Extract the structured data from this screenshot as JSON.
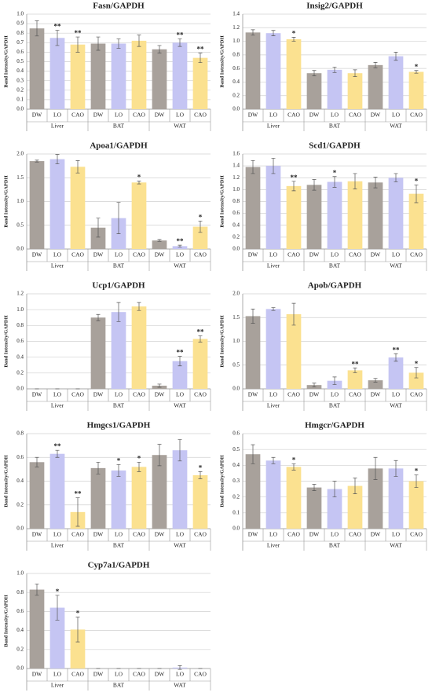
{
  "chart_data": [
    {
      "type": "bar",
      "title": "Fasn/GAPDH",
      "ylabel": "Band Intensity/GAPDH",
      "categories": [
        "DW",
        "LO",
        "CAO",
        "DW",
        "LO",
        "CAO",
        "DW",
        "LO",
        "CAO"
      ],
      "groups": [
        "Liver",
        "BAT",
        "WAT"
      ],
      "colors": [
        "#a8a19b",
        "#c5c5f3",
        "#fbe190"
      ],
      "values": [
        0.85,
        0.75,
        0.68,
        0.69,
        0.69,
        0.72,
        0.63,
        0.7,
        0.54
      ],
      "errors": [
        0.08,
        0.08,
        0.08,
        0.07,
        0.05,
        0.06,
        0.04,
        0.04,
        0.05
      ],
      "annotations": [
        null,
        "**",
        "**",
        null,
        null,
        null,
        null,
        "**",
        "**"
      ],
      "ylim": [
        0,
        1
      ],
      "yticks": [
        {
          "value": 0,
          "label": "0.0"
        },
        {
          "value": 0.1,
          "label": "0.1"
        },
        {
          "value": 0.2,
          "label": "0.2"
        },
        {
          "value": 0.3,
          "label": "0.3"
        },
        {
          "value": 0.4,
          "label": "0.4"
        },
        {
          "value": 0.5,
          "label": "0.5"
        },
        {
          "value": 0.6,
          "label": "0.6"
        },
        {
          "value": 0.7,
          "label": "0.7"
        },
        {
          "value": 0.8,
          "label": "0.8"
        },
        {
          "value": 0.9,
          "label": "0.9"
        },
        {
          "value": 1,
          "label": "1.0"
        }
      ],
      "grid": true
    },
    {
      "type": "bar",
      "title": "Insig2/GAPDH",
      "ylabel": "Band Intensity/GAPDH",
      "categories": [
        "DW",
        "LO",
        "CAO",
        "DW",
        "LO",
        "CAO",
        "DW",
        "LO",
        "CAO"
      ],
      "groups": [
        "Liver",
        "BAT",
        "WAT"
      ],
      "colors": [
        "#a8a19b",
        "#c5c5f3",
        "#fbe190"
      ],
      "values": [
        1.13,
        1.12,
        1.03,
        0.53,
        0.58,
        0.53,
        0.65,
        0.78,
        0.55
      ],
      "errors": [
        0.04,
        0.04,
        0.03,
        0.04,
        0.04,
        0.05,
        0.04,
        0.06,
        0.02
      ],
      "annotations": [
        null,
        null,
        "*",
        null,
        null,
        null,
        null,
        null,
        "*"
      ],
      "ylim": [
        0,
        1.4
      ],
      "yticks": [
        {
          "value": 0,
          "label": "0.0"
        },
        {
          "value": 0.2,
          "label": "0.2"
        },
        {
          "value": 0.4,
          "label": "0.4"
        },
        {
          "value": 0.6,
          "label": "0.6"
        },
        {
          "value": 0.8,
          "label": "0.8"
        },
        {
          "value": 1,
          "label": "1.0"
        },
        {
          "value": 1.2,
          "label": "1.2"
        },
        {
          "value": 1.4,
          "label": "1.4"
        }
      ],
      "grid": true
    },
    {
      "type": "bar",
      "title": "Apoa1/GAPDH",
      "ylabel": "Band Intensity/GAPDH",
      "categories": [
        "DW",
        "LO",
        "CAO",
        "DW",
        "LO",
        "CAO",
        "DW",
        "LO",
        "CAO"
      ],
      "groups": [
        "Liver",
        "BAT",
        "WAT"
      ],
      "colors": [
        "#a8a19b",
        "#c5c5f3",
        "#fbe190"
      ],
      "values": [
        1.85,
        1.89,
        1.73,
        0.45,
        0.65,
        1.4,
        0.18,
        0.06,
        0.47
      ],
      "errors": [
        0.02,
        0.1,
        0.13,
        0.2,
        0.33,
        0.03,
        0.02,
        0.02,
        0.12
      ],
      "annotations": [
        null,
        null,
        null,
        null,
        null,
        "*",
        null,
        "**",
        "*"
      ],
      "ylim": [
        0,
        2
      ],
      "yticks": [
        {
          "value": 0,
          "label": "0.0"
        },
        {
          "value": 0.5,
          "label": "0.5"
        },
        {
          "value": 1,
          "label": "1.0"
        },
        {
          "value": 1.5,
          "label": "1.5"
        },
        {
          "value": 2,
          "label": "2.0"
        }
      ],
      "grid": true
    },
    {
      "type": "bar",
      "title": "Scd1/GAPDH",
      "ylabel": "Band Intensity/GAPDH",
      "categories": [
        "DW",
        "LO",
        "CAO",
        "DW",
        "LO",
        "CAO",
        "DW",
        "LO",
        "CAO"
      ],
      "groups": [
        "Liver",
        "BAT",
        "WAT"
      ],
      "colors": [
        "#a8a19b",
        "#c5c5f3",
        "#fbe190"
      ],
      "values": [
        1.38,
        1.4,
        1.06,
        1.08,
        1.13,
        1.14,
        1.12,
        1.2,
        0.93
      ],
      "errors": [
        0.11,
        0.13,
        0.08,
        0.09,
        0.09,
        0.13,
        0.09,
        0.07,
        0.15
      ],
      "annotations": [
        null,
        null,
        "**",
        null,
        "*",
        null,
        null,
        null,
        "*"
      ],
      "ylim": [
        0,
        1.6
      ],
      "yticks": [
        {
          "value": 0,
          "label": "0.0"
        },
        {
          "value": 0.2,
          "label": "0.2"
        },
        {
          "value": 0.4,
          "label": "0.4"
        },
        {
          "value": 0.6,
          "label": "0.6"
        },
        {
          "value": 0.8,
          "label": "0.8"
        },
        {
          "value": 1,
          "label": "1.0"
        },
        {
          "value": 1.2,
          "label": "1.2"
        },
        {
          "value": 1.4,
          "label": "1.4"
        },
        {
          "value": 1.6,
          "label": "1.6"
        }
      ],
      "grid": true
    },
    {
      "type": "bar",
      "title": "Ucp1/GAPDH",
      "ylabel": "Band Intensity/GAPDH",
      "categories": [
        "DW",
        "LO",
        "CAO",
        "DW",
        "LO",
        "CAO",
        "DW",
        "LO",
        "CAO"
      ],
      "groups": [
        "Liver",
        "BAT",
        "WAT"
      ],
      "colors": [
        "#a8a19b",
        "#c5c5f3",
        "#fbe190"
      ],
      "values": [
        0,
        0,
        0,
        0.9,
        0.97,
        1.04,
        0.04,
        0.35,
        0.63
      ],
      "errors": [
        0,
        0,
        0,
        0.04,
        0.12,
        0.05,
        0.02,
        0.06,
        0.04
      ],
      "annotations": [
        null,
        null,
        null,
        null,
        null,
        null,
        null,
        "**",
        "**"
      ],
      "ylim": [
        0,
        1.2
      ],
      "yticks": [
        {
          "value": 0,
          "label": "0.0"
        },
        {
          "value": 0.2,
          "label": "0.2"
        },
        {
          "value": 0.4,
          "label": "0.4"
        },
        {
          "value": 0.6,
          "label": "0.6"
        },
        {
          "value": 0.8,
          "label": "0.8"
        },
        {
          "value": 1,
          "label": "1.0"
        },
        {
          "value": 1.2,
          "label": "1.2"
        }
      ],
      "grid": true
    },
    {
      "type": "bar",
      "title": "Apob/GAPDH",
      "ylabel": "Band Intensity/GAPDH",
      "categories": [
        "DW",
        "LO",
        "CAO",
        "DW",
        "LO",
        "CAO",
        "DW",
        "LO",
        "CAO"
      ],
      "groups": [
        "Liver",
        "BAT",
        "WAT"
      ],
      "colors": [
        "#a8a19b",
        "#c5c5f3",
        "#fbe190"
      ],
      "values": [
        1.53,
        1.68,
        1.57,
        0.08,
        0.17,
        0.39,
        0.18,
        0.66,
        0.34
      ],
      "errors": [
        0.15,
        0.03,
        0.23,
        0.04,
        0.08,
        0.05,
        0.04,
        0.08,
        0.11
      ],
      "annotations": [
        null,
        null,
        null,
        null,
        null,
        "**",
        null,
        "**",
        "*"
      ],
      "ylim": [
        0,
        2
      ],
      "yticks": [
        {
          "value": 0,
          "label": "0.0"
        },
        {
          "value": 0.5,
          "label": "0.5"
        },
        {
          "value": 1,
          "label": "1.0"
        },
        {
          "value": 1.5,
          "label": "1.5"
        },
        {
          "value": 2,
          "label": "2.0"
        }
      ],
      "grid": true
    },
    {
      "type": "bar",
      "title": "Hmgcs1/GAPDH",
      "ylabel": "Band Intensity/GAPDH",
      "categories": [
        "DW",
        "LO",
        "CAO",
        "DW",
        "LO",
        "CAO",
        "DW",
        "LO",
        "CAO"
      ],
      "groups": [
        "Liver",
        "BAT",
        "WAT"
      ],
      "colors": [
        "#a8a19b",
        "#c5c5f3",
        "#fbe190"
      ],
      "values": [
        0.56,
        0.63,
        0.14,
        0.51,
        0.49,
        0.52,
        0.62,
        0.66,
        0.45
      ],
      "errors": [
        0.04,
        0.03,
        0.12,
        0.05,
        0.05,
        0.04,
        0.09,
        0.09,
        0.03
      ],
      "annotations": [
        null,
        "**",
        "**",
        null,
        "*",
        "*",
        null,
        null,
        "*"
      ],
      "ylim": [
        0,
        0.8
      ],
      "yticks": [
        {
          "value": 0,
          "label": "0.0"
        },
        {
          "value": 0.2,
          "label": "0.2"
        },
        {
          "value": 0.4,
          "label": "0.4"
        },
        {
          "value": 0.6,
          "label": "0.6"
        },
        {
          "value": 0.8,
          "label": "0.8"
        }
      ],
      "grid": true
    },
    {
      "type": "bar",
      "title": "Hmgcr/GAPDH",
      "ylabel": "Band Intensity/GAPDH",
      "categories": [
        "DW",
        "LO",
        "CAO",
        "DW",
        "LO",
        "CAO",
        "DW",
        "LO",
        "CAO"
      ],
      "groups": [
        "Liver",
        "BAT",
        "WAT"
      ],
      "colors": [
        "#a8a19b",
        "#c5c5f3",
        "#fbe190"
      ],
      "values": [
        0.47,
        0.43,
        0.39,
        0.26,
        0.25,
        0.27,
        0.38,
        0.38,
        0.3
      ],
      "errors": [
        0.06,
        0.02,
        0.02,
        0.02,
        0.05,
        0.05,
        0.07,
        0.05,
        0.04
      ],
      "annotations": [
        null,
        null,
        "*",
        null,
        null,
        null,
        null,
        null,
        "*"
      ],
      "ylim": [
        0,
        0.6
      ],
      "yticks": [
        {
          "value": 0,
          "label": "0.0"
        },
        {
          "value": 0.1,
          "label": "0.1"
        },
        {
          "value": 0.2,
          "label": "0.2"
        },
        {
          "value": 0.3,
          "label": "0.3"
        },
        {
          "value": 0.4,
          "label": "0.4"
        },
        {
          "value": 0.5,
          "label": "0.5"
        },
        {
          "value": 0.6,
          "label": "0.6"
        }
      ],
      "grid": true
    },
    {
      "type": "bar",
      "title": "Cyp7a1/GAPDH",
      "ylabel": "Band Intensity/GAPDH",
      "categories": [
        "DW",
        "LO",
        "CAO",
        "DW",
        "LO",
        "CAO",
        "DW",
        "LO",
        "CAO"
      ],
      "groups": [
        "Liver",
        "BAT",
        "WAT"
      ],
      "colors": [
        "#a8a19b",
        "#c5c5f3",
        "#fbe190"
      ],
      "values": [
        0.83,
        0.64,
        0.41,
        0,
        0,
        0,
        0,
        0.01,
        0
      ],
      "errors": [
        0.06,
        0.13,
        0.13,
        0,
        0,
        0,
        0,
        0.02,
        0
      ],
      "annotations": [
        null,
        "*",
        "*",
        null,
        null,
        null,
        null,
        null,
        null
      ],
      "ylim": [
        0,
        1
      ],
      "yticks": [
        {
          "value": 0,
          "label": "0.0"
        },
        {
          "value": 0.2,
          "label": "0.2"
        },
        {
          "value": 0.4,
          "label": "0.4"
        },
        {
          "value": 0.6,
          "label": "0.6"
        },
        {
          "value": 0.8,
          "label": "0.8"
        },
        {
          "value": 1,
          "label": "1.0"
        }
      ],
      "grid": true
    }
  ]
}
